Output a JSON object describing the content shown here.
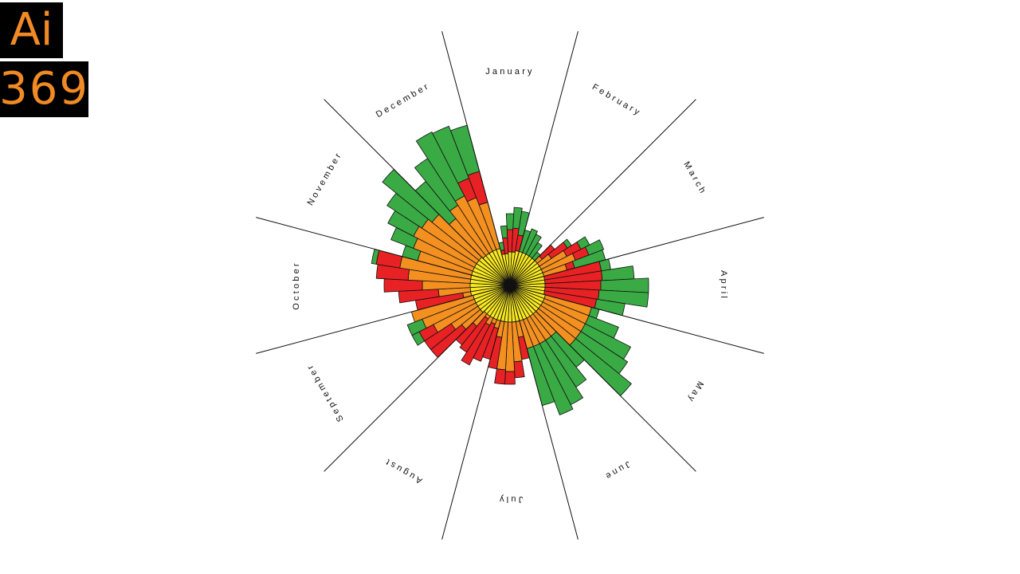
{
  "logo": {
    "top": "Ai",
    "bottom": "369"
  },
  "colors": {
    "ring_yellow": "#f7e81f",
    "ring_orange": "#f39020",
    "ring_red": "#e82124",
    "ring_green": "#3aaa45",
    "outline": "#111111"
  },
  "chart_data": {
    "type": "radial-stacked-bar",
    "title": "",
    "months": [
      "January",
      "February",
      "March",
      "April",
      "May",
      "June",
      "July",
      "August",
      "September",
      "October",
      "November",
      "December"
    ],
    "series_order": [
      "yellow",
      "orange",
      "red",
      "green"
    ],
    "note": "Wedges per month, each with stacked radial layers (inner to outer).",
    "wedges": [
      {
        "month": "January",
        "stacks": [
          [
            40,
            0,
            5,
            10
          ],
          [
            40,
            0,
            20,
            15
          ],
          [
            42,
            0,
            28,
            20
          ],
          [
            42,
            0,
            30,
            26
          ],
          [
            44,
            0,
            20,
            30
          ]
        ]
      },
      {
        "month": "February",
        "stacks": [
          [
            44,
            0,
            0,
            28
          ],
          [
            44,
            0,
            0,
            32
          ],
          [
            44,
            0,
            0,
            28
          ],
          [
            44,
            0,
            0,
            20
          ],
          [
            44,
            0,
            0,
            10
          ]
        ]
      },
      {
        "month": "March",
        "stacks": [
          [
            44,
            8,
            20,
            0
          ],
          [
            44,
            18,
            24,
            6
          ],
          [
            44,
            36,
            20,
            12
          ],
          [
            44,
            44,
            18,
            20
          ],
          [
            44,
            30,
            10,
            40
          ]
        ]
      },
      {
        "month": "April",
        "stacks": [
          [
            44,
            0,
            72,
            12
          ],
          [
            44,
            0,
            72,
            40
          ],
          [
            44,
            0,
            70,
            60
          ],
          [
            44,
            0,
            68,
            62
          ],
          [
            44,
            0,
            66,
            36
          ]
        ]
      },
      {
        "month": "May",
        "stacks": [
          [
            46,
            60,
            0,
            10
          ],
          [
            46,
            60,
            0,
            40
          ],
          [
            46,
            60,
            0,
            64
          ],
          [
            46,
            60,
            0,
            70
          ],
          [
            46,
            60,
            0,
            90
          ]
        ]
      },
      {
        "month": "June",
        "stacks": [
          [
            46,
            36,
            0,
            50
          ],
          [
            46,
            36,
            0,
            70
          ],
          [
            46,
            36,
            0,
            86
          ],
          [
            46,
            36,
            0,
            92
          ],
          [
            46,
            36,
            0,
            74
          ]
        ]
      },
      {
        "month": "July",
        "stacks": [
          [
            46,
            20,
            28,
            0
          ],
          [
            46,
            50,
            20,
            0
          ],
          [
            46,
            62,
            16,
            0
          ],
          [
            46,
            60,
            18,
            0
          ],
          [
            46,
            20,
            40,
            0
          ]
        ]
      },
      {
        "month": "August",
        "stacks": [
          [
            46,
            10,
            40,
            0
          ],
          [
            46,
            6,
            50,
            0
          ],
          [
            46,
            10,
            56,
            0
          ],
          [
            46,
            4,
            50,
            0
          ],
          [
            46,
            20,
            30,
            0
          ]
        ]
      },
      {
        "month": "September",
        "stacks": [
          [
            48,
            30,
            50,
            0
          ],
          [
            48,
            40,
            40,
            0
          ],
          [
            48,
            60,
            20,
            10
          ],
          [
            48,
            70,
            0,
            20
          ],
          [
            48,
            80,
            0,
            0
          ]
        ]
      },
      {
        "month": "October",
        "stacks": [
          [
            50,
            10,
            60,
            0
          ],
          [
            50,
            40,
            50,
            0
          ],
          [
            50,
            60,
            48,
            0
          ],
          [
            50,
            78,
            40,
            0
          ],
          [
            50,
            90,
            30,
            6
          ]
        ]
      },
      {
        "month": "November",
        "stacks": [
          [
            50,
            70,
            0,
            20
          ],
          [
            50,
            80,
            0,
            30
          ],
          [
            50,
            86,
            0,
            36
          ],
          [
            50,
            82,
            0,
            52
          ],
          [
            50,
            76,
            0,
            80
          ]
        ]
      },
      {
        "month": "December",
        "stacks": [
          [
            48,
            60,
            0,
            60
          ],
          [
            48,
            72,
            0,
            70
          ],
          [
            48,
            78,
            0,
            90
          ],
          [
            48,
            70,
            26,
            70
          ],
          [
            48,
            60,
            40,
            60
          ]
        ]
      }
    ]
  }
}
